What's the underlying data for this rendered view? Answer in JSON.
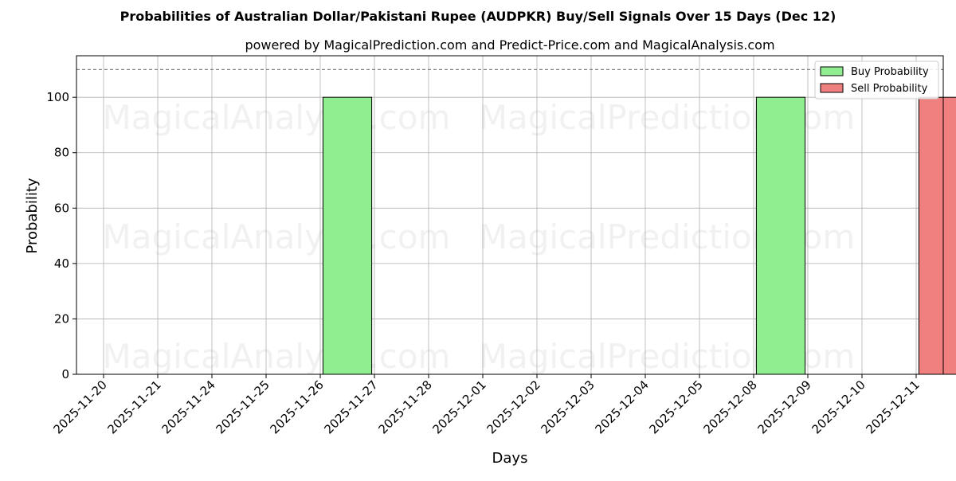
{
  "chart_data": {
    "type": "bar",
    "title": "Probabilities of Australian Dollar/Pakistani Rupee (AUDPKR) Buy/Sell Signals Over 15 Days (Dec 12)",
    "subtitle": "powered by MagicalPrediction.com and Predict-Price.com and MagicalAnalysis.com",
    "xlabel": "Days",
    "ylabel": "Probability",
    "ylim": [
      0,
      115
    ],
    "yticks": [
      0,
      20,
      40,
      60,
      80,
      100
    ],
    "categories": [
      "2025-11-20",
      "2025-11-21",
      "2025-11-24",
      "2025-11-25",
      "2025-11-26",
      "2025-11-27",
      "2025-11-28",
      "2025-12-01",
      "2025-12-02",
      "2025-12-03",
      "2025-12-04",
      "2025-12-05",
      "2025-12-08",
      "2025-12-09",
      "2025-12-10",
      "2025-12-11"
    ],
    "series": [
      {
        "name": "Buy Probability",
        "color": "#90ee90",
        "values": [
          0,
          0,
          0,
          0,
          100,
          0,
          0,
          0,
          0,
          0,
          0,
          0,
          100,
          0,
          0,
          0
        ]
      },
      {
        "name": "Sell Probability",
        "color": "#f08080",
        "values": [
          0,
          0,
          0,
          0,
          0,
          0,
          0,
          0,
          0,
          0,
          0,
          0,
          0,
          0,
          0,
          100
        ]
      }
    ],
    "reference_line": 110,
    "grid": true,
    "legend_position": "top-right",
    "watermarks": [
      "MagicalAnalysis.com",
      "MagicalPrediction.com"
    ]
  }
}
